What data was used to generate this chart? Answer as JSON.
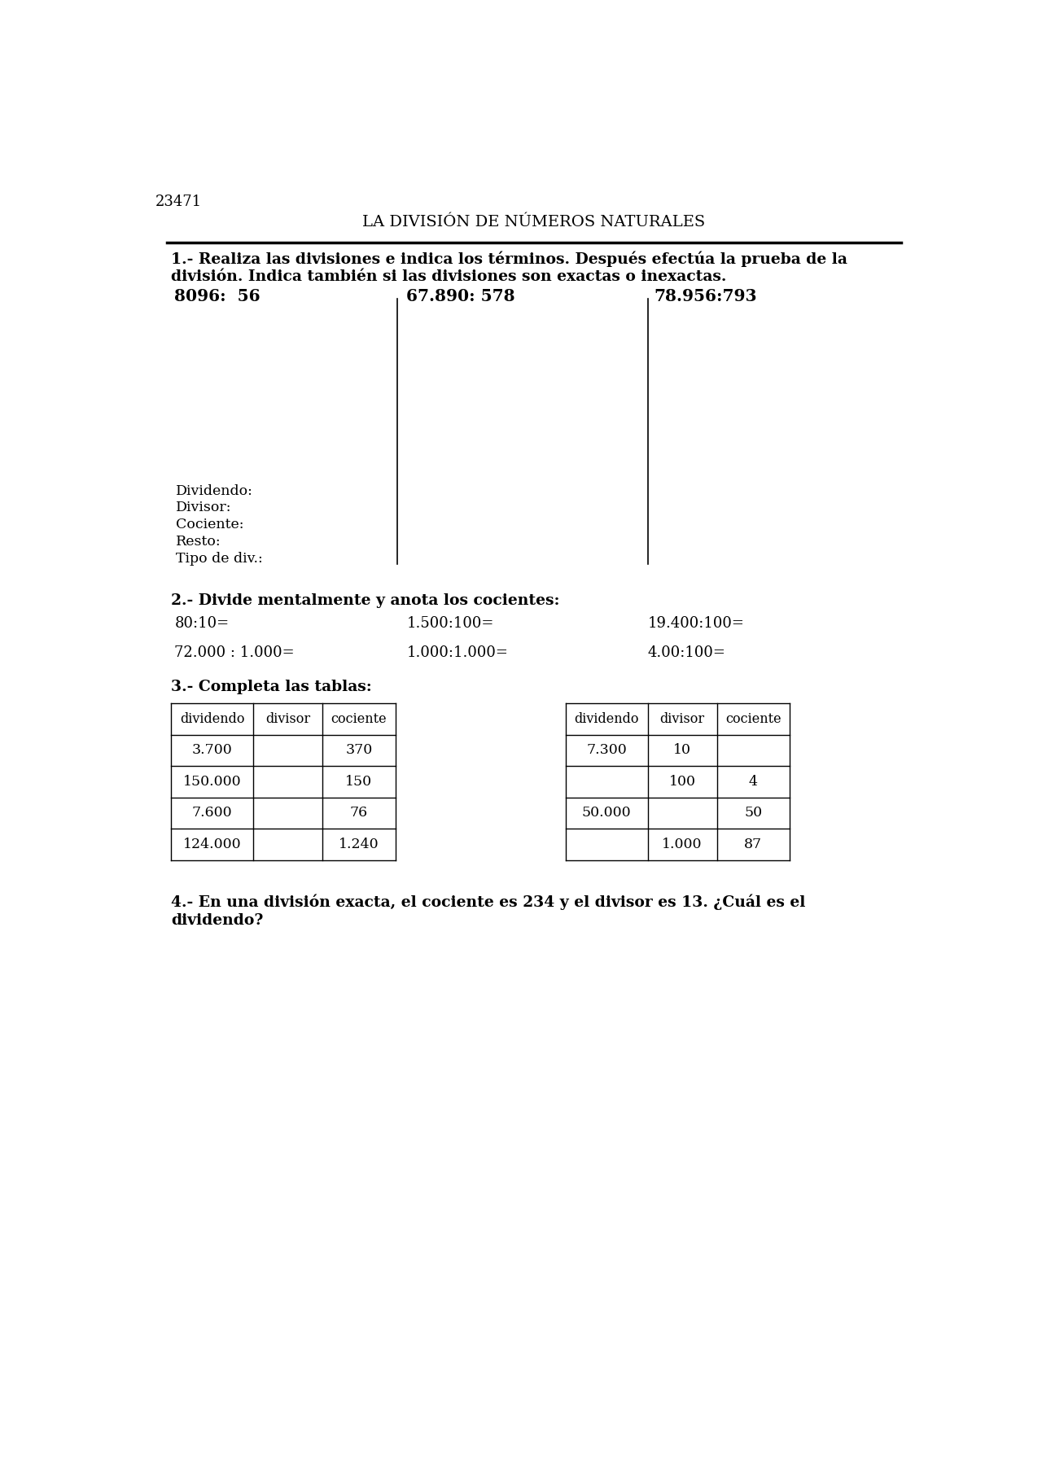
{
  "page_id": "23471",
  "title": "LA DIVISIÓN DE NÚMEROS NATURALES",
  "bg_color": "#ffffff",
  "text_color": "#000000",
  "section1_line1": "1.- Realiza las divisiones e indica los términos. Después efectúa la prueba de la",
  "section1_line2": "división. Indica también si las divisiones son exactas o inexactas.",
  "problems": [
    "8096:  56",
    "67.890: 578",
    "78.956:793"
  ],
  "div_labels": [
    "Dividendo:",
    "Divisor:",
    "Cociente:",
    "Resto:",
    "Tipo de div.:"
  ],
  "section2_label": "2.- Divide mentalmente y anota los cocientes:",
  "row1": [
    "80:10=",
    "1.500:100=",
    "19.400:100="
  ],
  "row2": [
    "72.000 : 1.000=",
    "1.000:1.000=",
    "4.00:100="
  ],
  "section3_label": "3.- Completa las tablas:",
  "table1_headers": [
    "dividendo",
    "divisor",
    "cociente"
  ],
  "table1_rows": [
    [
      "3.700",
      "",
      "370"
    ],
    [
      "150.000",
      "",
      "150"
    ],
    [
      "7.600",
      "",
      "76"
    ],
    [
      "124.000",
      "",
      "1.240"
    ]
  ],
  "table2_headers": [
    "dividendo",
    "divisor",
    "cociente"
  ],
  "table2_rows": [
    [
      "7.300",
      "10",
      ""
    ],
    [
      "",
      "100",
      "4"
    ],
    [
      "50.000",
      "",
      "50"
    ],
    [
      "",
      "1.000",
      "87"
    ]
  ],
  "section4_line1": "4.- En una división exacta, el cociente es 234 y el divisor es 13. ¿Cuál es el",
  "section4_line2": "dividendo?"
}
